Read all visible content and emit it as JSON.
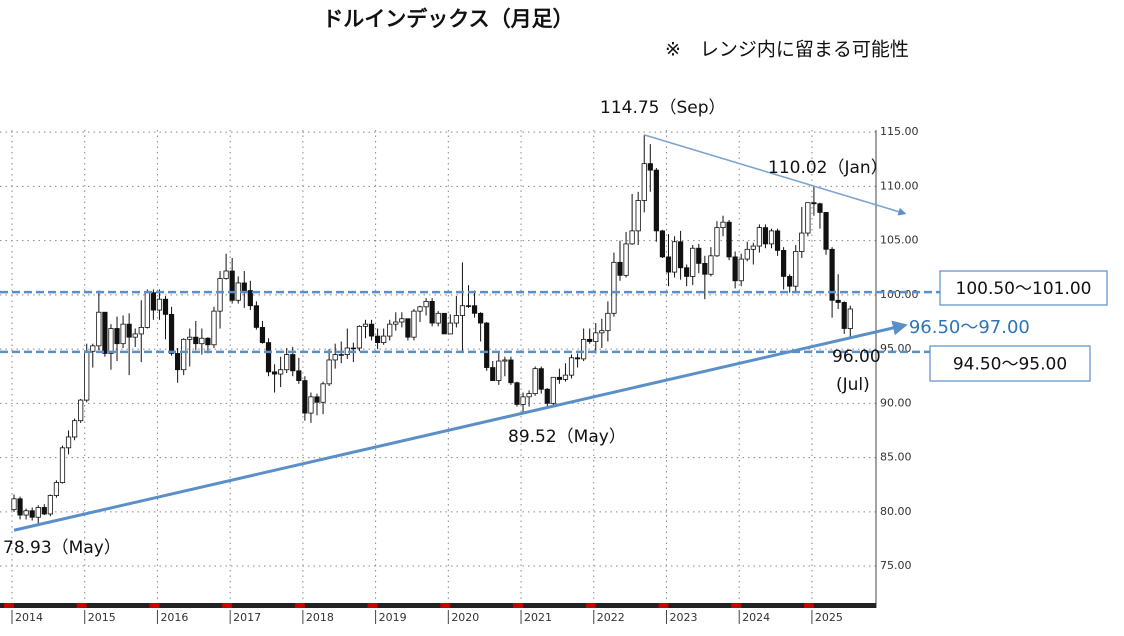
{
  "title": "ドルインデックス（月足）",
  "subtitle": "※　レンジ内に留まる可能性",
  "chart_data": {
    "type": "candlestick",
    "categories": [
      "2014",
      null,
      null,
      null,
      null,
      null,
      null,
      null,
      null,
      null,
      null,
      null,
      "2015",
      null,
      null,
      null,
      null,
      null,
      null,
      null,
      null,
      null,
      null,
      null,
      "2016",
      null,
      null,
      null,
      null,
      null,
      null,
      null,
      null,
      null,
      null,
      null,
      "2017",
      null,
      null,
      null,
      null,
      null,
      null,
      null,
      null,
      null,
      null,
      null,
      "2018",
      null,
      null,
      null,
      null,
      null,
      null,
      null,
      null,
      null,
      null,
      null,
      "2019",
      null,
      null,
      null,
      null,
      null,
      null,
      null,
      null,
      null,
      null,
      null,
      "2020",
      null,
      null,
      null,
      null,
      null,
      null,
      null,
      null,
      null,
      null,
      null,
      "2021",
      null,
      null,
      null,
      null,
      null,
      null,
      null,
      null,
      null,
      null,
      null,
      "2022",
      null,
      null,
      null,
      null,
      null,
      null,
      null,
      null,
      null,
      null,
      null,
      "2023",
      null,
      null,
      null,
      null,
      null,
      null,
      null,
      null,
      null,
      null,
      null,
      "2024",
      null,
      null,
      null,
      null,
      null,
      null,
      null,
      null,
      null,
      null,
      null,
      "2025",
      null,
      null,
      null,
      null,
      null,
      null
    ],
    "open": [
      80.2,
      81.2,
      79.7,
      80.1,
      79.5,
      80.4,
      79.8,
      81.5,
      82.7,
      85.9,
      86.9,
      88.4,
      90.3,
      94.8,
      95.3,
      98.4,
      94.6,
      96.9,
      95.5,
      97.3,
      96.1,
      96.4,
      97.0,
      100.2,
      98.6,
      99.6,
      98.2,
      94.6,
      93.1,
      95.9,
      96.1,
      95.5,
      96.0,
      95.4,
      98.5,
      101.5,
      102.2,
      99.5,
      101.1,
      100.4,
      99.0,
      97.0,
      95.6,
      92.9,
      92.7,
      93.1,
      94.5,
      93.0,
      92.1,
      89.1,
      90.6,
      90.1,
      91.8,
      94.0,
      94.5,
      94.5,
      95.1,
      95.1,
      97.1,
      97.3,
      96.2,
      95.6,
      96.2,
      97.3,
      97.5,
      97.8,
      96.1,
      98.5,
      98.9,
      99.4,
      97.4,
      98.3,
      96.4,
      97.4,
      98.1,
      99.0,
      99.0,
      98.3,
      97.4,
      93.3,
      92.1,
      93.9,
      94.0,
      91.9,
      89.9,
      90.6,
      90.9,
      93.2,
      91.3,
      90.0,
      92.4,
      92.2,
      92.6,
      94.2,
      94.1,
      95.9,
      95.7,
      96.5,
      96.7,
      98.3,
      103.0,
      101.8,
      104.7,
      105.9,
      108.7,
      112.1,
      111.5,
      105.9,
      103.5,
      102.1,
      104.9,
      102.5,
      101.7,
      104.3,
      102.9,
      101.9,
      103.6,
      106.2,
      106.7,
      103.5,
      101.3,
      103.3,
      104.2,
      104.5,
      106.2,
      104.7,
      105.9,
      104.1,
      101.7,
      100.8,
      104.0,
      105.7,
      108.5,
      108.4,
      107.6,
      104.2,
      99.5,
      99.3,
      96.9
    ],
    "high": [
      81.6,
      81.4,
      80.3,
      80.4,
      80.6,
      80.7,
      81.6,
      82.9,
      86.1,
      87.5,
      88.6,
      90.4,
      95.5,
      95.5,
      100.4,
      98.4,
      97.3,
      98.0,
      98.1,
      98.3,
      96.9,
      99.5,
      100.5,
      100.5,
      100.5,
      99.9,
      98.9,
      95.1,
      96.0,
      96.9,
      97.6,
      96.9,
      96.1,
      98.9,
      102.2,
      103.8,
      103.4,
      101.7,
      102.2,
      101.3,
      99.4,
      97.6,
      96.0,
      93.6,
      94.3,
      95.1,
      95.2,
      94.2,
      92.5,
      91.0,
      90.9,
      92.0,
      95.0,
      95.5,
      95.7,
      96.9,
      95.6,
      97.2,
      97.7,
      97.7,
      96.9,
      96.9,
      97.7,
      98.4,
      98.4,
      97.8,
      98.7,
      99.0,
      99.7,
      99.7,
      98.5,
      98.3,
      98.2,
      99.9,
      103.0,
      100.9,
      100.4,
      98.4,
      97.5,
      93.9,
      94.7,
      94.3,
      94.3,
      92.0,
      91.0,
      91.2,
      93.4,
      93.4,
      91.4,
      92.4,
      93.2,
      93.7,
      94.5,
      94.6,
      96.9,
      96.9,
      97.4,
      97.8,
      99.4,
      103.9,
      105.0,
      105.8,
      109.3,
      109.5,
      114.75,
      113.9,
      111.7,
      106.0,
      105.6,
      105.4,
      105.9,
      102.8,
      104.6,
      104.7,
      103.6,
      104.4,
      106.8,
      107.3,
      106.9,
      104.0,
      103.8,
      104.9,
      104.8,
      106.5,
      106.5,
      106.1,
      106.1,
      104.4,
      101.9,
      104.6,
      108.1,
      108.5,
      110.02,
      108.5,
      107.6,
      104.4,
      101.9,
      99.4,
      99.0
    ],
    "low": [
      80.0,
      79.3,
      79.3,
      79.2,
      78.93,
      79.7,
      79.6,
      81.3,
      82.6,
      85.3,
      86.6,
      88.2,
      90.1,
      93.3,
      94.9,
      94.3,
      93.1,
      93.9,
      95.1,
      92.6,
      95.2,
      93.8,
      96.9,
      97.7,
      97.7,
      95.9,
      94.4,
      91.9,
      92.6,
      93.4,
      94.9,
      94.5,
      94.6,
      95.1,
      96.9,
      101.4,
      99.2,
      99.2,
      98.8,
      98.6,
      96.8,
      95.5,
      92.5,
      91.0,
      91.5,
      92.8,
      92.5,
      91.8,
      88.4,
      88.2,
      88.9,
      89.0,
      91.6,
      93.2,
      93.7,
      94.1,
      93.8,
      94.8,
      96.0,
      95.8,
      95.0,
      95.4,
      95.8,
      96.7,
      97.0,
      95.8,
      95.8,
      97.5,
      98.1,
      97.1,
      97.1,
      96.4,
      96.4,
      97.0,
      94.7,
      98.8,
      97.9,
      95.7,
      93.0,
      92.1,
      91.7,
      92.5,
      91.7,
      89.7,
      89.2,
      89.7,
      90.7,
      90.9,
      89.52,
      89.7,
      91.8,
      92.0,
      92.3,
      93.3,
      93.9,
      95.5,
      94.6,
      95.1,
      95.7,
      98.0,
      101.3,
      101.6,
      104.6,
      104.6,
      107.6,
      109.5,
      104.9,
      103.4,
      100.8,
      101.6,
      101.4,
      100.8,
      100.9,
      102.0,
      99.6,
      101.7,
      103.5,
      105.4,
      103.2,
      100.6,
      100.8,
      103.1,
      102.8,
      103.9,
      104.3,
      104.3,
      103.6,
      100.5,
      100.2,
      100.2,
      103.4,
      105.4,
      107.3,
      106.1,
      103.7,
      97.9,
      98.7,
      96.4,
      96.0
    ],
    "close": [
      81.2,
      79.7,
      80.1,
      79.5,
      80.4,
      79.8,
      81.5,
      82.7,
      85.9,
      86.9,
      88.4,
      90.3,
      94.8,
      95.3,
      98.4,
      94.6,
      96.9,
      95.5,
      97.3,
      96.1,
      96.4,
      97.0,
      100.2,
      98.6,
      99.6,
      98.2,
      94.6,
      93.1,
      95.9,
      96.1,
      95.5,
      96.0,
      95.4,
      98.5,
      101.5,
      102.2,
      99.5,
      101.1,
      100.4,
      99.0,
      97.0,
      95.6,
      92.9,
      92.7,
      93.1,
      94.5,
      93.0,
      92.1,
      89.1,
      90.6,
      90.1,
      91.8,
      94.0,
      94.5,
      94.5,
      95.1,
      95.1,
      97.1,
      97.3,
      96.2,
      95.6,
      96.2,
      97.3,
      97.5,
      97.8,
      96.1,
      98.5,
      98.9,
      99.4,
      97.4,
      98.3,
      96.4,
      97.4,
      98.1,
      99.0,
      99.0,
      98.3,
      97.4,
      93.3,
      92.1,
      93.9,
      94.0,
      91.9,
      89.9,
      90.6,
      90.9,
      93.2,
      91.3,
      90.0,
      92.4,
      92.2,
      92.6,
      94.2,
      94.1,
      95.9,
      95.7,
      96.5,
      96.7,
      98.3,
      103.0,
      101.8,
      104.7,
      105.9,
      108.7,
      112.1,
      111.5,
      105.9,
      103.5,
      102.1,
      104.9,
      102.5,
      101.7,
      104.3,
      102.9,
      101.9,
      103.6,
      106.2,
      106.7,
      103.5,
      101.3,
      103.3,
      104.2,
      104.5,
      106.2,
      104.7,
      105.9,
      104.1,
      101.7,
      100.8,
      104.0,
      105.7,
      108.5,
      108.4,
      107.6,
      104.2,
      99.5,
      99.3,
      96.9,
      98.7
    ],
    "up_color": "#ffffff",
    "down_color": "#111111",
    "ylim": [
      71.87,
      115.2
    ],
    "yticks": [
      {
        "value": 75,
        "label": "75.00"
      },
      {
        "value": 80,
        "label": "80.00"
      },
      {
        "value": 85,
        "label": "85.00"
      },
      {
        "value": 90,
        "label": "90.00"
      },
      {
        "value": 95,
        "label": "95.00"
      },
      {
        "value": 100,
        "label": "100.00"
      },
      {
        "value": 105,
        "label": "105.00"
      },
      {
        "value": 110,
        "label": "110.00"
      },
      {
        "value": 115,
        "label": "115.00"
      }
    ],
    "grid": true,
    "levels": [
      {
        "label": "100.50〜101.00",
        "value": 100.25,
        "color": "#5b8fc7"
      },
      {
        "label": "94.50〜95.00",
        "value": 94.75,
        "color": "#5b8fc7"
      }
    ],
    "trendlines": [
      {
        "label": "96.50〜97.00",
        "x": [
          0,
          147
        ],
        "y": [
          78.3,
          97.2
        ],
        "color": "#5b8fc7"
      },
      {
        "x": [
          104,
          147
        ],
        "y": [
          114.75,
          107.5
        ],
        "color": "#7ba3cf"
      }
    ],
    "annotations": [
      "114.75（Sep）",
      "110.02（Jan）",
      "89.52（May）",
      "78.93（May）",
      "96.00",
      "(Jul)"
    ]
  }
}
